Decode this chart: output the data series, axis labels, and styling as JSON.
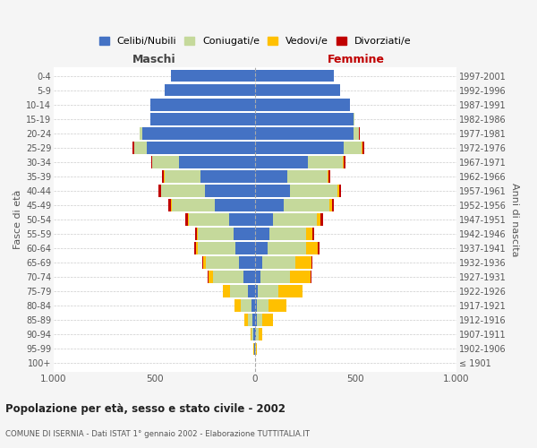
{
  "age_groups": [
    "100+",
    "95-99",
    "90-94",
    "85-89",
    "80-84",
    "75-79",
    "70-74",
    "65-69",
    "60-64",
    "55-59",
    "50-54",
    "45-49",
    "40-44",
    "35-39",
    "30-34",
    "25-29",
    "20-24",
    "15-19",
    "10-14",
    "5-9",
    "0-4"
  ],
  "birth_years": [
    "≤ 1901",
    "1902-1906",
    "1907-1911",
    "1912-1916",
    "1917-1921",
    "1922-1926",
    "1927-1931",
    "1932-1936",
    "1937-1941",
    "1942-1946",
    "1947-1951",
    "1952-1956",
    "1957-1961",
    "1962-1966",
    "1967-1971",
    "1972-1976",
    "1977-1981",
    "1982-1986",
    "1987-1991",
    "1992-1996",
    "1997-2001"
  ],
  "males": {
    "celibi": [
      2,
      3,
      8,
      12,
      18,
      35,
      60,
      80,
      100,
      105,
      130,
      200,
      250,
      270,
      380,
      540,
      560,
      520,
      520,
      450,
      420
    ],
    "coniugati": [
      0,
      2,
      8,
      25,
      55,
      90,
      150,
      165,
      185,
      180,
      200,
      215,
      215,
      180,
      130,
      60,
      12,
      2,
      0,
      0,
      0
    ],
    "vedovi": [
      0,
      2,
      8,
      18,
      30,
      35,
      20,
      12,
      8,
      5,
      3,
      2,
      2,
      2,
      2,
      2,
      2,
      0,
      0,
      0,
      0
    ],
    "divorziati": [
      0,
      0,
      0,
      0,
      0,
      2,
      5,
      4,
      10,
      10,
      12,
      12,
      12,
      10,
      5,
      5,
      0,
      0,
      0,
      0,
      0
    ]
  },
  "females": {
    "nubili": [
      0,
      2,
      5,
      10,
      10,
      15,
      25,
      35,
      60,
      70,
      90,
      140,
      175,
      160,
      260,
      440,
      490,
      490,
      470,
      420,
      390
    ],
    "coniugate": [
      0,
      2,
      12,
      25,
      55,
      100,
      150,
      165,
      195,
      185,
      215,
      230,
      235,
      200,
      175,
      90,
      25,
      5,
      0,
      0,
      0
    ],
    "vedove": [
      0,
      5,
      20,
      55,
      90,
      120,
      100,
      80,
      55,
      30,
      20,
      10,
      8,
      5,
      5,
      5,
      2,
      0,
      0,
      0,
      0
    ],
    "divorziate": [
      0,
      0,
      0,
      0,
      2,
      2,
      5,
      5,
      10,
      10,
      12,
      12,
      10,
      10,
      8,
      5,
      2,
      0,
      0,
      0,
      0
    ]
  },
  "colors": {
    "celibi_nubili": "#4472c4",
    "coniugati_e": "#c5d99b",
    "vedovi_e": "#ffc000",
    "divorziati_e": "#c00000"
  },
  "xlim": 1000,
  "title": "Popolazione per età, sesso e stato civile - 2002",
  "subtitle": "COMUNE DI ISERNIA - Dati ISTAT 1° gennaio 2002 - Elaborazione TUTTITALIA.IT",
  "ylabel_left": "Fasce di età",
  "ylabel_right": "Anni di nascita",
  "xlabel_left": "Maschi",
  "xlabel_right": "Femmine",
  "legend_labels": [
    "Celibi/Nubili",
    "Coniugati/e",
    "Vedovi/e",
    "Divorziati/e"
  ],
  "bg_color": "#f5f5f5",
  "plot_bg": "#ffffff"
}
